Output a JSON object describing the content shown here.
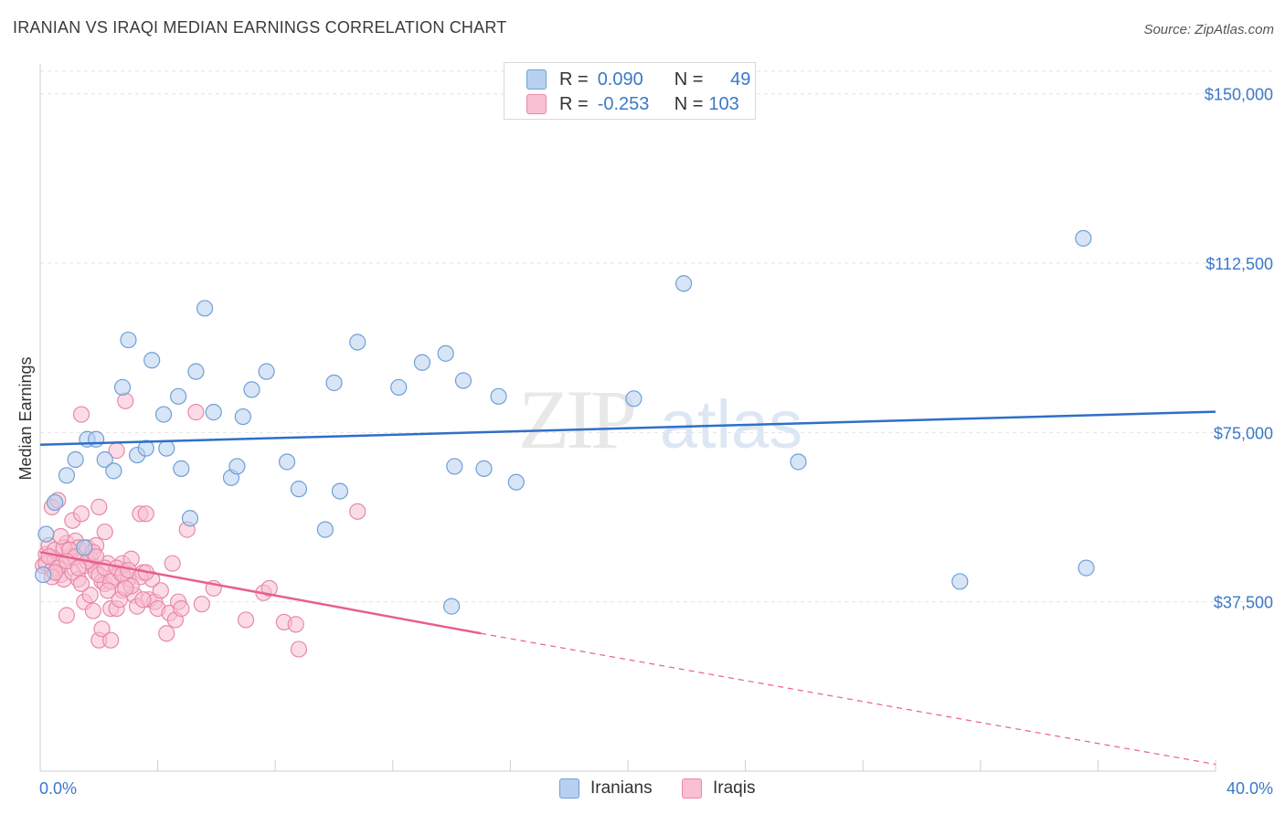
{
  "title": "IRANIAN VS IRAQI MEDIAN EARNINGS CORRELATION CHART",
  "source": "Source: ZipAtlas.com",
  "watermark": {
    "zip": "ZIP",
    "atlas": "atlas"
  },
  "legend": {
    "rows": [
      {
        "r_label": "R =",
        "r_value": "0.090",
        "n_label": "N =",
        "n_value": "49",
        "color": "#b8d0ef",
        "stroke": "#6f9fd8"
      },
      {
        "r_label": "R =",
        "r_value": "-0.253",
        "n_label": "N =",
        "n_value": "103",
        "color": "#f8c0d2",
        "stroke": "#e889a8"
      }
    ]
  },
  "bottom_legend": [
    {
      "label": "Iranians",
      "color": "#b8d0ef",
      "stroke": "#6f9fd8"
    },
    {
      "label": "Iraqis",
      "color": "#f8c0d2",
      "stroke": "#e889a8"
    }
  ],
  "chart_data": {
    "type": "scatter",
    "title": "IRANIAN VS IRAQI MEDIAN EARNINGS CORRELATION CHART",
    "xlabel": "",
    "ylabel": "Median Earnings",
    "xlim": [
      0,
      40
    ],
    "ylim": [
      0,
      155000
    ],
    "x_tick_labels": [
      "0.0%",
      "40.0%"
    ],
    "y_ticks": [
      37500,
      75000,
      112500,
      150000
    ],
    "y_tick_labels": [
      "$37,500",
      "$75,000",
      "$112,500",
      "$150,000"
    ],
    "grid": true,
    "series": [
      {
        "name": "Iranians",
        "color": "#6f9fd8",
        "fill": "#b8d0ef",
        "trend": {
          "x0": 0,
          "y0": 72300,
          "x1": 40,
          "y1": 79600,
          "color": "#2f6fc8"
        },
        "points": [
          [
            0.1,
            43500
          ],
          [
            0.2,
            52500
          ],
          [
            0.5,
            59500
          ],
          [
            0.9,
            65500
          ],
          [
            1.2,
            69000
          ],
          [
            1.6,
            73500
          ],
          [
            1.9,
            73500
          ],
          [
            2.2,
            69000
          ],
          [
            2.5,
            66500
          ],
          [
            2.8,
            85000
          ],
          [
            3.0,
            95500
          ],
          [
            3.3,
            70000
          ],
          [
            3.6,
            71500
          ],
          [
            3.8,
            91000
          ],
          [
            4.2,
            79000
          ],
          [
            4.3,
            71500
          ],
          [
            4.7,
            83000
          ],
          [
            4.8,
            67000
          ],
          [
            5.1,
            56000
          ],
          [
            5.3,
            88500
          ],
          [
            5.6,
            102500
          ],
          [
            5.9,
            79500
          ],
          [
            6.5,
            65000
          ],
          [
            6.7,
            67500
          ],
          [
            6.9,
            78500
          ],
          [
            7.2,
            84500
          ],
          [
            7.7,
            88500
          ],
          [
            8.4,
            68500
          ],
          [
            8.8,
            62500
          ],
          [
            9.7,
            53500
          ],
          [
            10.0,
            86000
          ],
          [
            10.2,
            62000
          ],
          [
            10.8,
            95000
          ],
          [
            12.2,
            85000
          ],
          [
            13.0,
            90500
          ],
          [
            13.8,
            92500
          ],
          [
            14.1,
            67500
          ],
          [
            14.0,
            36500
          ],
          [
            14.4,
            86500
          ],
          [
            15.1,
            67000
          ],
          [
            15.6,
            83000
          ],
          [
            16.2,
            64000
          ],
          [
            20.2,
            82500
          ],
          [
            21.9,
            108000
          ],
          [
            25.8,
            68500
          ],
          [
            31.3,
            42000
          ],
          [
            35.5,
            118000
          ],
          [
            35.6,
            45000
          ],
          [
            1.5,
            49500
          ]
        ]
      },
      {
        "name": "Iraqis",
        "color": "#e889a8",
        "fill": "#f8c0d2",
        "trend": {
          "x0": 0,
          "y0": 48500,
          "x1": 15,
          "y1": 30500,
          "dash_x1": 40,
          "dash_y1": 1500,
          "color": "#e8608a"
        },
        "points": [
          [
            0.1,
            45500
          ],
          [
            0.2,
            48000
          ],
          [
            0.2,
            46000
          ],
          [
            0.3,
            50000
          ],
          [
            0.4,
            44500
          ],
          [
            0.4,
            58500
          ],
          [
            0.5,
            47000
          ],
          [
            0.5,
            49000
          ],
          [
            0.6,
            60000
          ],
          [
            0.7,
            46000
          ],
          [
            0.7,
            43500
          ],
          [
            0.8,
            42500
          ],
          [
            0.9,
            50500
          ],
          [
            0.9,
            34500
          ],
          [
            1.0,
            47500
          ],
          [
            1.1,
            55500
          ],
          [
            1.2,
            51000
          ],
          [
            1.3,
            49500
          ],
          [
            1.3,
            42500
          ],
          [
            1.4,
            79000
          ],
          [
            1.4,
            57000
          ],
          [
            1.5,
            45500
          ],
          [
            1.5,
            37500
          ],
          [
            1.6,
            49500
          ],
          [
            1.7,
            47000
          ],
          [
            1.7,
            39000
          ],
          [
            1.8,
            45500
          ],
          [
            1.8,
            35500
          ],
          [
            1.9,
            50000
          ],
          [
            1.9,
            44000
          ],
          [
            2.0,
            58500
          ],
          [
            2.0,
            29000
          ],
          [
            2.1,
            42000
          ],
          [
            2.1,
            31500
          ],
          [
            2.2,
            41500
          ],
          [
            2.2,
            53000
          ],
          [
            2.3,
            46000
          ],
          [
            2.4,
            29000
          ],
          [
            2.4,
            36000
          ],
          [
            2.5,
            43000
          ],
          [
            2.6,
            36000
          ],
          [
            2.6,
            71000
          ],
          [
            2.7,
            44000
          ],
          [
            2.8,
            40000
          ],
          [
            2.8,
            46000
          ],
          [
            2.9,
            82000
          ],
          [
            3.0,
            42500
          ],
          [
            3.1,
            47000
          ],
          [
            3.2,
            39000
          ],
          [
            3.3,
            36500
          ],
          [
            3.4,
            57000
          ],
          [
            3.5,
            44000
          ],
          [
            3.6,
            57000
          ],
          [
            3.7,
            38000
          ],
          [
            3.8,
            42500
          ],
          [
            3.9,
            37500
          ],
          [
            4.0,
            36000
          ],
          [
            4.1,
            40000
          ],
          [
            4.3,
            30500
          ],
          [
            4.4,
            35000
          ],
          [
            4.5,
            46000
          ],
          [
            4.6,
            33500
          ],
          [
            4.7,
            37500
          ],
          [
            4.8,
            36000
          ],
          [
            5.0,
            53500
          ],
          [
            5.3,
            79500
          ],
          [
            5.5,
            37000
          ],
          [
            5.9,
            40500
          ],
          [
            7.0,
            33500
          ],
          [
            7.6,
            39500
          ],
          [
            7.8,
            40500
          ],
          [
            8.3,
            33000
          ],
          [
            8.7,
            32500
          ],
          [
            8.8,
            27000
          ],
          [
            10.8,
            57500
          ],
          [
            0.3,
            47500
          ],
          [
            0.6,
            45000
          ],
          [
            0.8,
            49500
          ],
          [
            1.0,
            49000
          ],
          [
            1.2,
            47500
          ],
          [
            1.6,
            46500
          ],
          [
            1.8,
            48500
          ],
          [
            2.0,
            43500
          ],
          [
            2.2,
            45000
          ],
          [
            2.4,
            42000
          ],
          [
            2.6,
            45000
          ],
          [
            2.8,
            43500
          ],
          [
            3.0,
            44500
          ],
          [
            3.4,
            43000
          ],
          [
            3.6,
            44000
          ],
          [
            0.4,
            43000
          ],
          [
            0.7,
            52000
          ],
          [
            1.1,
            44000
          ],
          [
            1.4,
            41500
          ],
          [
            1.9,
            47500
          ],
          [
            2.3,
            40000
          ],
          [
            2.7,
            38000
          ],
          [
            3.1,
            41000
          ],
          [
            3.5,
            38000
          ],
          [
            0.9,
            46500
          ],
          [
            1.3,
            45000
          ],
          [
            0.5,
            44000
          ],
          [
            2.9,
            40500
          ]
        ]
      }
    ]
  }
}
